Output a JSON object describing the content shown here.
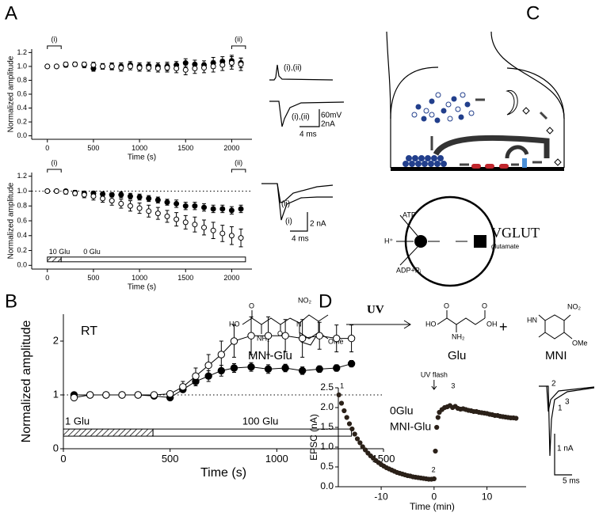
{
  "panel_labels": [
    "A",
    "B",
    "C",
    "D"
  ],
  "chart_data": [
    {
      "type": "scatter",
      "x_label": "Time (s)",
      "y_label": "Normalized amplitude",
      "xlim": [
        -170,
        2220
      ],
      "xticks": [
        0,
        500,
        1000,
        1500,
        2000
      ],
      "ylim": [
        -0.05,
        1.25
      ],
      "yticks": [
        {
          "value": 0,
          "label": "0.0"
        },
        0.2,
        0.4,
        0.6,
        0.8,
        {
          "value": 1,
          "label": "1.0"
        },
        1.2
      ],
      "annotations": [
        {
          "text": "(i)",
          "start": 0,
          "end": 150
        },
        {
          "text": "(ii)",
          "start": 2000,
          "end": 2150
        }
      ],
      "series": [
        {
          "color": "#000000",
          "marker_fill": "#000000",
          "x": [
            0,
            100,
            200,
            300,
            400,
            500,
            600,
            700,
            800,
            900,
            1000,
            1100,
            1200,
            1300,
            1400,
            1500,
            1600,
            1700,
            1800,
            1900,
            2000,
            2100
          ],
          "values": [
            1.0,
            1.0,
            1.02,
            1.03,
            1.02,
            0.97,
            1.0,
            1.0,
            1.0,
            1.02,
            1.0,
            1.01,
            1.0,
            1.0,
            1.02,
            1.05,
            1.03,
            1.02,
            1.05,
            1.07,
            1.08,
            1.05
          ],
          "errors": [
            0.02,
            0.02,
            0.03,
            0.03,
            0.04,
            0.04,
            0.04,
            0.05,
            0.05,
            0.05,
            0.05,
            0.05,
            0.05,
            0.06,
            0.05,
            0.06,
            0.06,
            0.06,
            0.08,
            0.07,
            0.08,
            0.07
          ]
        },
        {
          "color": "#000000",
          "marker_fill": "#ffffff",
          "x": [
            0,
            100,
            200,
            300,
            400,
            500,
            600,
            700,
            800,
            900,
            1000,
            1100,
            1200,
            1300,
            1400,
            1500,
            1600,
            1700,
            1800,
            1900,
            2000,
            2100
          ],
          "values": [
            1.0,
            1.0,
            1.03,
            1.03,
            1.03,
            1.02,
            1.0,
            1.0,
            0.98,
            1.0,
            0.98,
            0.98,
            0.97,
            0.98,
            0.97,
            0.95,
            0.97,
            0.98,
            1.0,
            1.02,
            1.05,
            1.03
          ],
          "errors": [
            0.02,
            0.02,
            0.03,
            0.03,
            0.03,
            0.04,
            0.04,
            0.04,
            0.05,
            0.05,
            0.05,
            0.05,
            0.05,
            0.06,
            0.06,
            0.07,
            0.07,
            0.07,
            0.08,
            0.08,
            0.09,
            0.09
          ]
        }
      ]
    },
    {
      "type": "scatter",
      "x_label": "Time (s)",
      "y_label": "Normalized amplitude",
      "xlim": [
        -170,
        2220
      ],
      "xticks": [
        0,
        500,
        1000,
        1500,
        2000
      ],
      "ylim": [
        -0.05,
        1.25
      ],
      "yticks": [
        {
          "value": 0,
          "label": "0.0"
        },
        0.2,
        0.4,
        0.6,
        0.8,
        {
          "value": 1,
          "label": "1.0"
        },
        1.2
      ],
      "reference_line": 1,
      "annotations": [
        {
          "text": "(i)",
          "start": 0,
          "end": 150
        },
        {
          "text": "(ii)",
          "start": 2000,
          "end": 2150
        }
      ],
      "conditions": [
        {
          "label": "10 Glu",
          "start": 0,
          "end": 150,
          "pattern": "hatch"
        },
        {
          "label": "0 Glu",
          "start": 150,
          "end": 2150,
          "pattern": "none"
        }
      ],
      "series": [
        {
          "color": "#000000",
          "marker_fill": "#000000",
          "x": [
            0,
            100,
            200,
            300,
            400,
            500,
            600,
            700,
            800,
            900,
            1000,
            1100,
            1200,
            1300,
            1400,
            1500,
            1600,
            1700,
            1800,
            1900,
            2000,
            2100
          ],
          "values": [
            1.0,
            1.0,
            1.0,
            0.98,
            0.97,
            0.97,
            0.96,
            0.95,
            0.95,
            0.93,
            0.92,
            0.9,
            0.88,
            0.85,
            0.83,
            0.8,
            0.8,
            0.78,
            0.76,
            0.76,
            0.74,
            0.76
          ],
          "errors": [
            0.02,
            0.02,
            0.02,
            0.03,
            0.03,
            0.03,
            0.03,
            0.03,
            0.04,
            0.04,
            0.04,
            0.04,
            0.04,
            0.04,
            0.05,
            0.05,
            0.05,
            0.05,
            0.05,
            0.05,
            0.05,
            0.05
          ]
        },
        {
          "color": "#000000",
          "marker_fill": "#ffffff",
          "x": [
            0,
            100,
            200,
            300,
            400,
            500,
            600,
            700,
            800,
            900,
            1000,
            1100,
            1200,
            1300,
            1400,
            1500,
            1600,
            1700,
            1800,
            1900,
            2000,
            2100
          ],
          "values": [
            1.0,
            1.0,
            0.99,
            0.97,
            0.95,
            0.93,
            0.9,
            0.87,
            0.83,
            0.8,
            0.77,
            0.73,
            0.7,
            0.66,
            0.62,
            0.58,
            0.55,
            0.51,
            0.47,
            0.43,
            0.4,
            0.37
          ],
          "errors": [
            0.02,
            0.02,
            0.03,
            0.03,
            0.04,
            0.05,
            0.05,
            0.06,
            0.06,
            0.07,
            0.07,
            0.08,
            0.08,
            0.08,
            0.09,
            0.09,
            0.1,
            0.1,
            0.11,
            0.11,
            0.12,
            0.12
          ]
        }
      ]
    },
    {
      "type": "line",
      "x_label": "Time (s)",
      "y_label": "Normalized amplitude",
      "xlim": [
        0,
        1500
      ],
      "xticks": [
        0,
        500,
        1000,
        1500
      ],
      "ylim": [
        0,
        2.5
      ],
      "yticks": [
        0,
        1,
        2
      ],
      "reference_line": 1,
      "labels": [
        "RT"
      ],
      "conditions": [
        {
          "label": "1 Glu",
          "start": 0,
          "end": 420,
          "pattern": "hatch"
        },
        {
          "label": "100 Glu",
          "start": 420,
          "end": 1350,
          "pattern": "none"
        }
      ],
      "series": [
        {
          "color": "#000000",
          "marker_fill": "#000000",
          "x": [
            50,
            125,
            200,
            275,
            350,
            425,
            500,
            560,
            620,
            680,
            740,
            800,
            880,
            960,
            1040,
            1120,
            1200,
            1280,
            1350
          ],
          "values": [
            1.0,
            1.0,
            1.0,
            1.0,
            1.0,
            0.98,
            0.95,
            1.1,
            1.25,
            1.35,
            1.45,
            1.5,
            1.52,
            1.48,
            1.5,
            1.45,
            1.48,
            1.5,
            1.58
          ],
          "errors": [
            0.03,
            0.03,
            0.03,
            0.03,
            0.03,
            0.03,
            0.03,
            0.05,
            0.08,
            0.1,
            0.1,
            0.08,
            0.08,
            0.08,
            0.07,
            0.07,
            0.06,
            0.06,
            0.06
          ]
        },
        {
          "color": "#000000",
          "marker_fill": "#ffffff",
          "x": [
            50,
            125,
            200,
            275,
            350,
            425,
            500,
            560,
            620,
            680,
            740,
            800,
            880,
            960,
            1040,
            1120,
            1200,
            1280,
            1350
          ],
          "values": [
            0.95,
            1.0,
            1.0,
            1.0,
            1.0,
            1.0,
            1.02,
            1.15,
            1.35,
            1.55,
            1.75,
            2.0,
            2.1,
            2.1,
            2.1,
            2.05,
            2.1,
            2.05,
            2.05
          ],
          "errors": [
            0.05,
            0.03,
            0.03,
            0.03,
            0.03,
            0.03,
            0.05,
            0.1,
            0.15,
            0.2,
            0.25,
            0.3,
            0.35,
            0.35,
            0.3,
            0.35,
            0.25,
            0.25,
            0.25
          ]
        }
      ]
    },
    {
      "type": "scatter",
      "x_label": "Time (min)",
      "y_label": "EPSC (nA)",
      "xlim": [
        -18.1,
        17.4
      ],
      "xticks": [
        -10,
        0,
        10
      ],
      "ylim": [
        0,
        2.5
      ],
      "yticks": [
        {
          "value": 0,
          "label": "0.0"
        },
        0.5,
        {
          "value": 1,
          "label": "1.0"
        },
        1.5,
        {
          "value": 2,
          "label": "2.0"
        },
        2.5
      ],
      "labels": [
        "0Glu",
        "MNI-Glu"
      ],
      "annotations": [
        {
          "text": "UV flash",
          "x": 0,
          "y": 2.5
        },
        {
          "text": "1",
          "x": -18,
          "y": 2.42
        },
        {
          "text": "2",
          "x": -0.7,
          "y": 0.3
        },
        {
          "text": "3",
          "x": 3,
          "y": 2.42
        }
      ],
      "series": [
        {
          "color": "#2b2119",
          "marker_fill": "#2b2119",
          "x": [
            -18,
            -17.5,
            -17,
            -16.5,
            -16,
            -15.5,
            -15,
            -14.5,
            -14,
            -13.5,
            -13,
            -12.5,
            -12,
            -11.5,
            -11,
            -10.5,
            -10,
            -9.5,
            -9,
            -8.5,
            -8,
            -7.5,
            -7,
            -6.5,
            -6,
            -5.5,
            -5,
            -4.5,
            -4,
            -3.5,
            -3,
            -2.5,
            -2,
            -1.5,
            -1,
            -0.5,
            0,
            0.25,
            0.5,
            0.75,
            1,
            1.5,
            2,
            2.5,
            3,
            3.5,
            4,
            4.5,
            5,
            5.5,
            6,
            6.5,
            7,
            7.5,
            8,
            8.5,
            9,
            9.5,
            10,
            10.5,
            11,
            11.5,
            12,
            12.5,
            13,
            13.5,
            14,
            14.5,
            15,
            15.5
          ],
          "values": [
            2.32,
            2.11,
            1.92,
            1.75,
            1.59,
            1.46,
            1.33,
            1.21,
            1.11,
            1.01,
            0.93,
            0.85,
            0.78,
            0.72,
            0.66,
            0.61,
            0.56,
            0.52,
            0.48,
            0.45,
            0.42,
            0.39,
            0.36,
            0.34,
            0.32,
            0.3,
            0.28,
            0.27,
            0.25,
            0.24,
            0.23,
            0.22,
            0.21,
            0.2,
            0.19,
            0.19,
            0.2,
            0.9,
            1.5,
            1.75,
            1.88,
            1.95,
            2.0,
            2.02,
            2.05,
            2.0,
            2.03,
            1.98,
            1.96,
            1.97,
            1.95,
            1.93,
            1.92,
            1.9,
            1.9,
            1.88,
            1.87,
            1.86,
            1.85,
            1.83,
            1.82,
            1.8,
            1.8,
            1.78,
            1.77,
            1.76,
            1.75,
            1.74,
            1.74,
            1.73
          ]
        }
      ]
    }
  ],
  "insets": {
    "a_spike": "(i),(ii)",
    "a_epsc": "(i),(ii)",
    "a_mv": "60mV",
    "a_na": "2nA",
    "a_ms": "4 ms",
    "b_ii": "(ii)",
    "b_i": "(i)",
    "b_na": "2 nA",
    "b_ms": "4 ms",
    "d_2": "2",
    "d_3": "3",
    "d_1": "1",
    "d_na": "1 nA",
    "d_ms": "5 ms"
  },
  "transporter": {
    "atp": "ATP",
    "h": "H⁺",
    "adp": "ADP+Pᵢ",
    "name": "VGLUT",
    "substrate": "glutamate"
  },
  "reaction": {
    "reactant": "MNI-Glu",
    "light": "UV",
    "product": "Glu",
    "plus": "+",
    "byproduct": "MNI",
    "atoms": [
      "NO₂",
      "HO",
      "O",
      "NH₂",
      "N",
      "O",
      "OMe",
      "O",
      "O",
      "HO",
      "OH",
      "NH₂",
      "NO₂",
      "HN",
      "OMe"
    ]
  }
}
